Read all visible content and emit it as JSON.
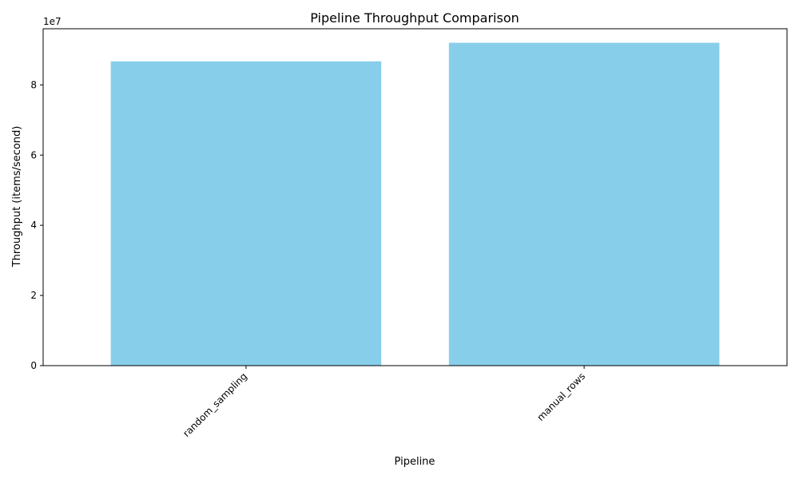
{
  "chart_data": {
    "type": "bar",
    "title": "Pipeline Throughput Comparison",
    "xlabel": "Pipeline",
    "ylabel": "Throughput (items/second)",
    "categories": [
      "random_sampling",
      "manual_rows"
    ],
    "values": [
      86700000,
      92000000
    ],
    "ylim": [
      0,
      96000000
    ],
    "y_ticks": [
      0,
      20000000,
      40000000,
      60000000,
      80000000
    ],
    "y_tick_labels": [
      "0",
      "2",
      "4",
      "6",
      "8"
    ],
    "y_offset_text": "1e7",
    "bar_color": "#87CEEB",
    "grid": false,
    "legend": "none"
  }
}
